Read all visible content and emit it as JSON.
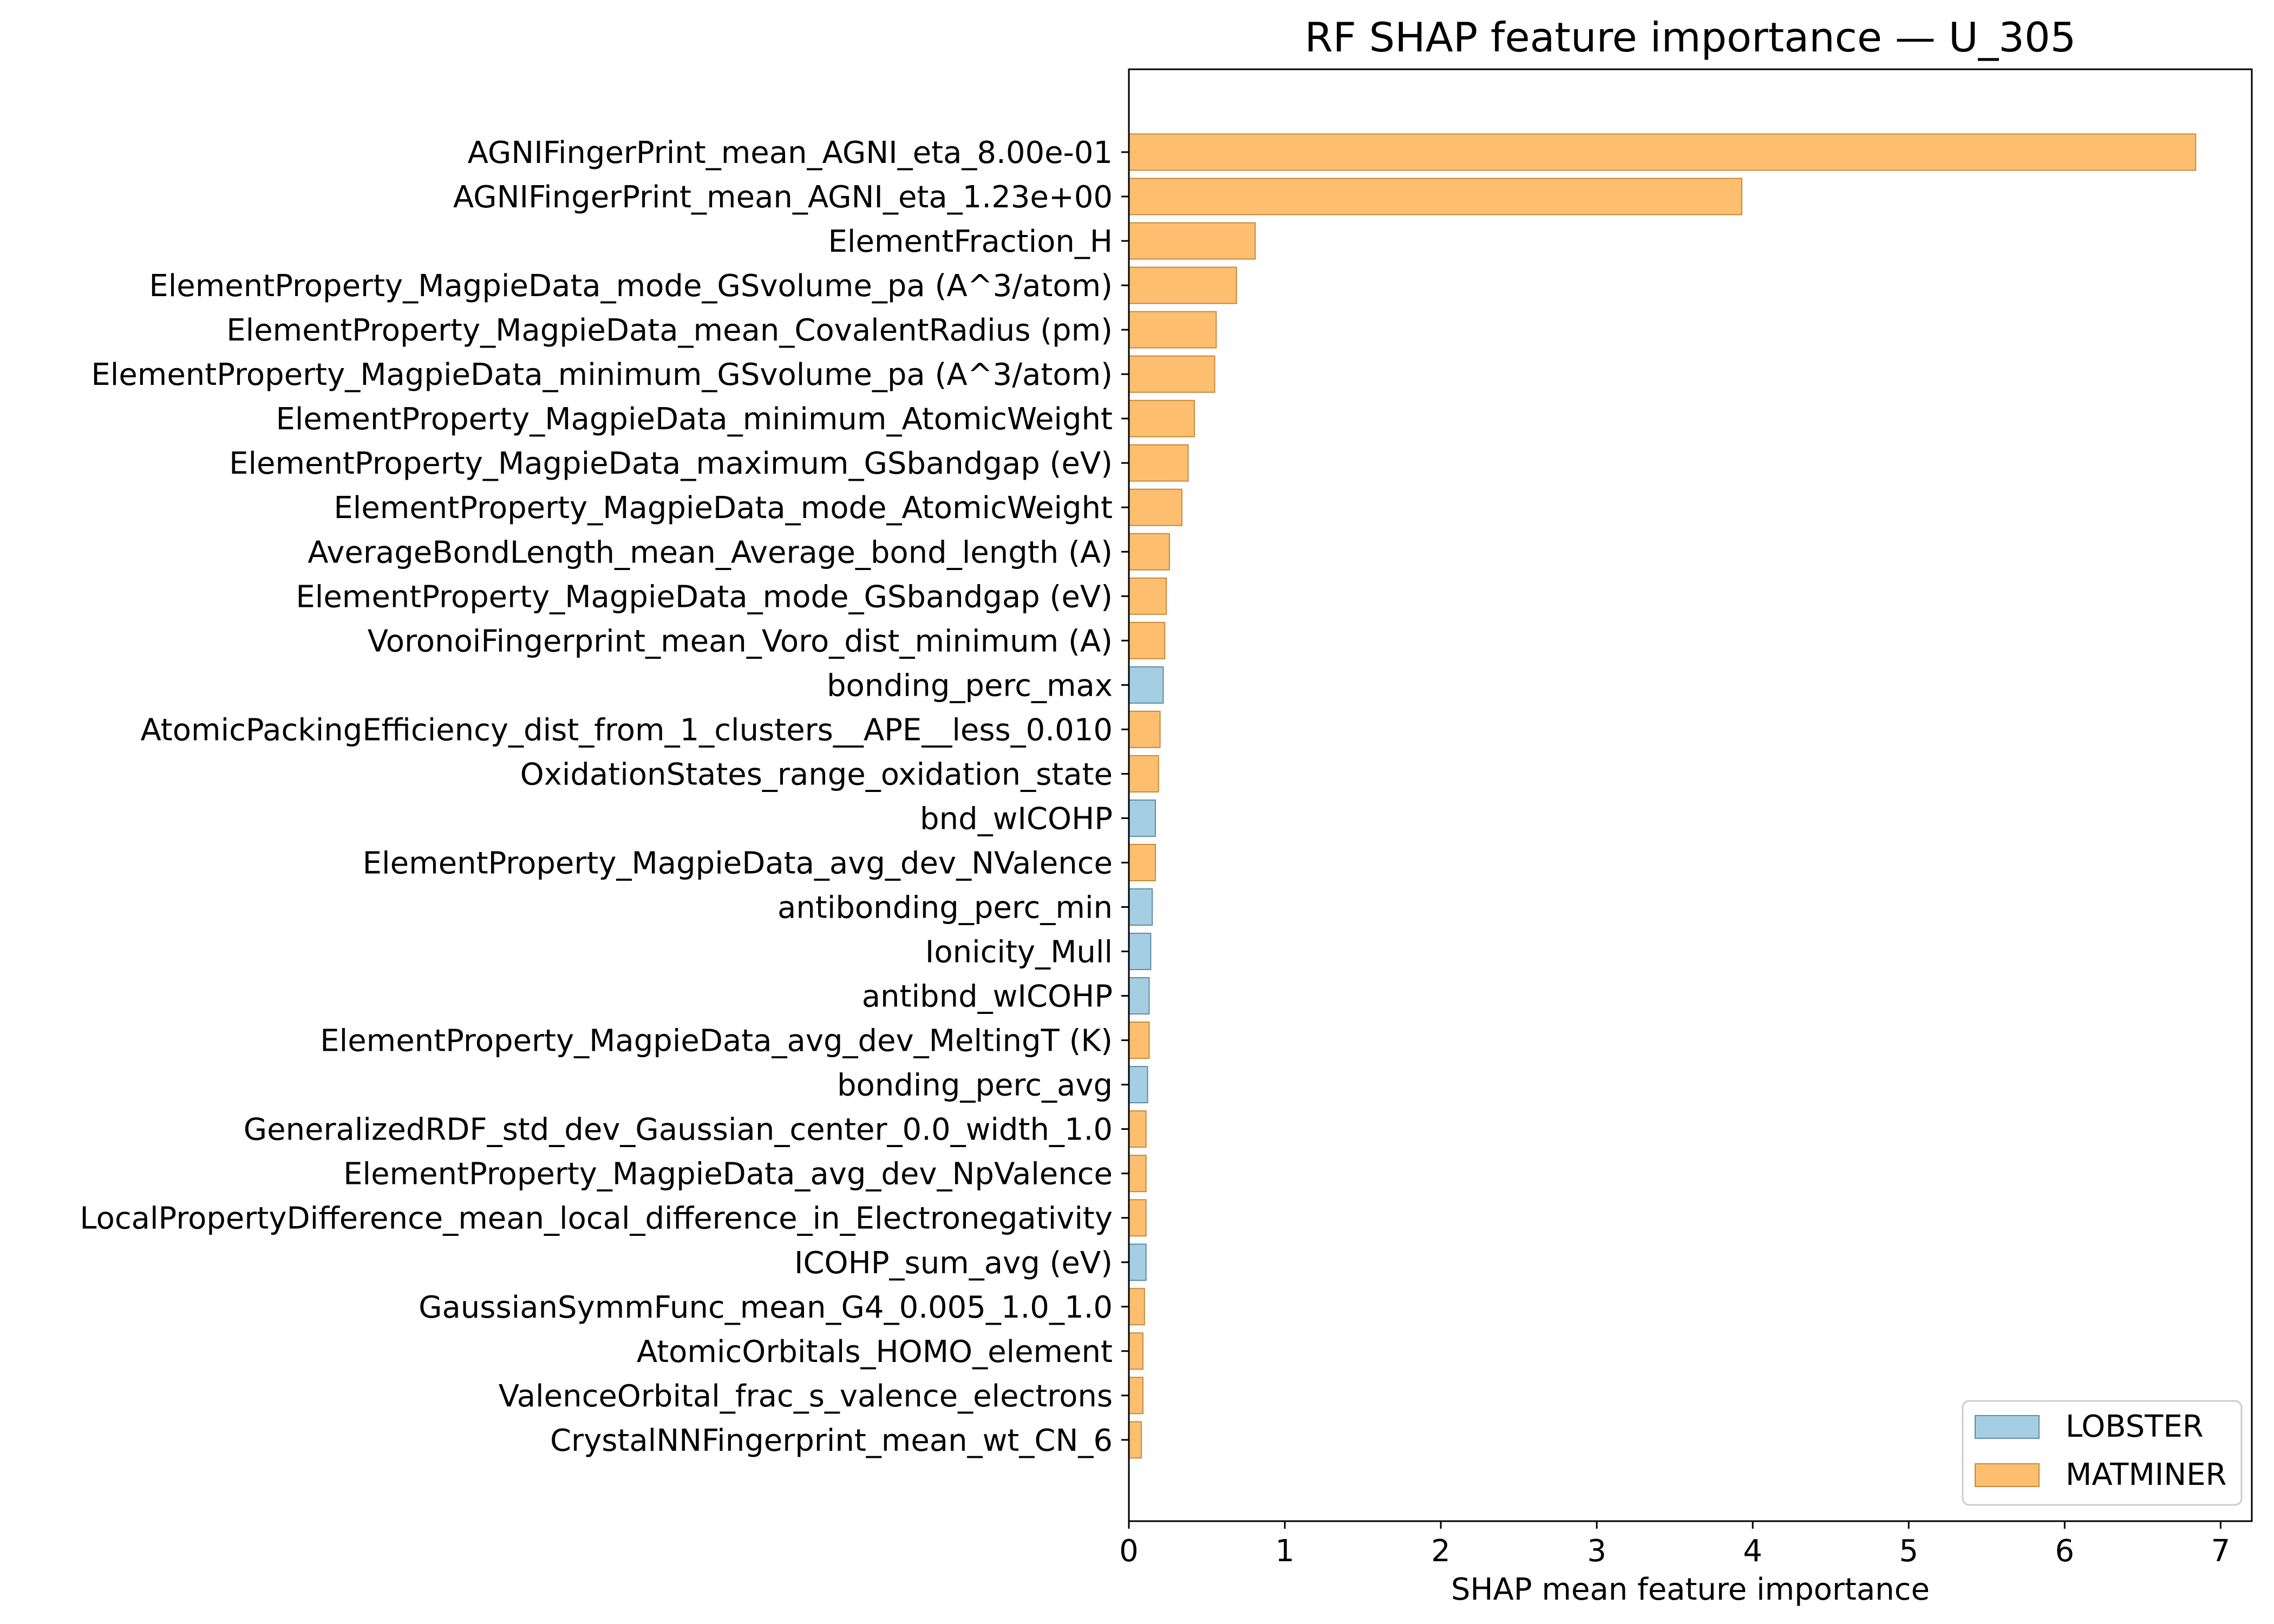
{
  "chart_data": {
    "type": "bar",
    "orientation": "horizontal",
    "title": "RF SHAP feature importance — U_305",
    "xlabel": "SHAP mean feature importance",
    "ylabel": "",
    "xlim": [
      0,
      7.2
    ],
    "xticks": [
      "0",
      "1",
      "2",
      "3",
      "4",
      "5",
      "6",
      "7"
    ],
    "grid": false,
    "legend": {
      "location": "lower-right",
      "entries": [
        {
          "name": "LOBSTER",
          "color": "#a6cee3"
        },
        {
          "name": "MATMINER",
          "color": "#fdbf6f"
        }
      ]
    },
    "categories": [
      "AGNIFingerPrint_mean_AGNI_eta_8.00e-01",
      "AGNIFingerPrint_mean_AGNI_eta_1.23e+00",
      "ElementFraction_H",
      "ElementProperty_MagpieData_mode_GSvolume_pa (A^3/atom)",
      "ElementProperty_MagpieData_mean_CovalentRadius (pm)",
      "ElementProperty_MagpieData_minimum_GSvolume_pa (A^3/atom)",
      "ElementProperty_MagpieData_minimum_AtomicWeight",
      "ElementProperty_MagpieData_maximum_GSbandgap (eV)",
      "ElementProperty_MagpieData_mode_AtomicWeight",
      "AverageBondLength_mean_Average_bond_length (A)",
      "ElementProperty_MagpieData_mode_GSbandgap (eV)",
      "VoronoiFingerprint_mean_Voro_dist_minimum (A)",
      "bonding_perc_max",
      "AtomicPackingEfficiency_dist_from_1_clusters__APE__less_0.010",
      "OxidationStates_range_oxidation_state",
      "bnd_wICOHP",
      "ElementProperty_MagpieData_avg_dev_NValence",
      "antibonding_perc_min",
      "Ionicity_Mull",
      "antibnd_wICOHP",
      "ElementProperty_MagpieData_avg_dev_MeltingT (K)",
      "bonding_perc_avg",
      "GeneralizedRDF_std_dev_Gaussian_center_0.0_width_1.0",
      "ElementProperty_MagpieData_avg_dev_NpValence",
      "LocalPropertyDifference_mean_local_difference_in_Electronegativity",
      "ICOHP_sum_avg (eV)",
      "GaussianSymmFunc_mean_G4_0.005_1.0_1.0",
      "AtomicOrbitals_HOMO_element",
      "ValenceOrbital_frac_s_valence_electrons",
      "CrystalNNFingerprint_mean_wt_CN_6"
    ],
    "values": [
      6.84,
      3.93,
      0.81,
      0.69,
      0.56,
      0.55,
      0.42,
      0.38,
      0.34,
      0.26,
      0.24,
      0.23,
      0.22,
      0.2,
      0.19,
      0.17,
      0.17,
      0.15,
      0.14,
      0.13,
      0.13,
      0.12,
      0.11,
      0.11,
      0.11,
      0.11,
      0.1,
      0.09,
      0.09,
      0.08
    ],
    "groups": [
      "MATMINER",
      "MATMINER",
      "MATMINER",
      "MATMINER",
      "MATMINER",
      "MATMINER",
      "MATMINER",
      "MATMINER",
      "MATMINER",
      "MATMINER",
      "MATMINER",
      "MATMINER",
      "LOBSTER",
      "MATMINER",
      "MATMINER",
      "LOBSTER",
      "MATMINER",
      "LOBSTER",
      "LOBSTER",
      "LOBSTER",
      "MATMINER",
      "LOBSTER",
      "MATMINER",
      "MATMINER",
      "MATMINER",
      "LOBSTER",
      "MATMINER",
      "MATMINER",
      "MATMINER",
      "MATMINER"
    ]
  }
}
